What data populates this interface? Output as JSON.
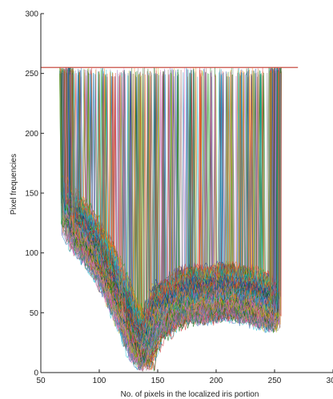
{
  "chart_data": {
    "type": "line",
    "title": "",
    "xlabel": "No. of pixels in the localized iris portion",
    "ylabel": "Pixel frequencies",
    "xlim": [
      50,
      300
    ],
    "ylim": [
      0,
      300
    ],
    "xticks": [
      50,
      100,
      150,
      200,
      250,
      300
    ],
    "yticks": [
      0,
      50,
      100,
      150,
      200,
      250,
      300
    ],
    "xtick_labels": [
      "50",
      "100",
      "150",
      "200",
      "250",
      "300"
    ],
    "ytick_labels": [
      "0",
      "50",
      "100",
      "150",
      "200",
      "250",
      "300"
    ],
    "grid": false,
    "legend": "none",
    "series_count_approx": 200,
    "reference_lines": [
      {
        "y": 255,
        "x_start": 50,
        "x_end": 270,
        "color": "#c0392b"
      }
    ],
    "envelope": {
      "x_start_range": [
        66,
        78
      ],
      "x_end_range": [
        246,
        256
      ],
      "saturation_value": 255,
      "profile_x": [
        70,
        80,
        90,
        100,
        110,
        120,
        130,
        140,
        150,
        160,
        170,
        180,
        190,
        200,
        210,
        220,
        230,
        240,
        250
      ],
      "profile_mean_y": [
        140,
        125,
        115,
        100,
        82,
        60,
        35,
        22,
        50,
        55,
        62,
        66,
        64,
        66,
        68,
        66,
        64,
        60,
        58
      ]
    },
    "colors": [
      "#1f77b4",
      "#2ca02c",
      "#d62728",
      "#17becf",
      "#9467bd",
      "#bcbd22",
      "#8c564b",
      "#e377c2",
      "#7f7f7f",
      "#ff7f0e",
      "#0b3d91",
      "#006400"
    ]
  }
}
